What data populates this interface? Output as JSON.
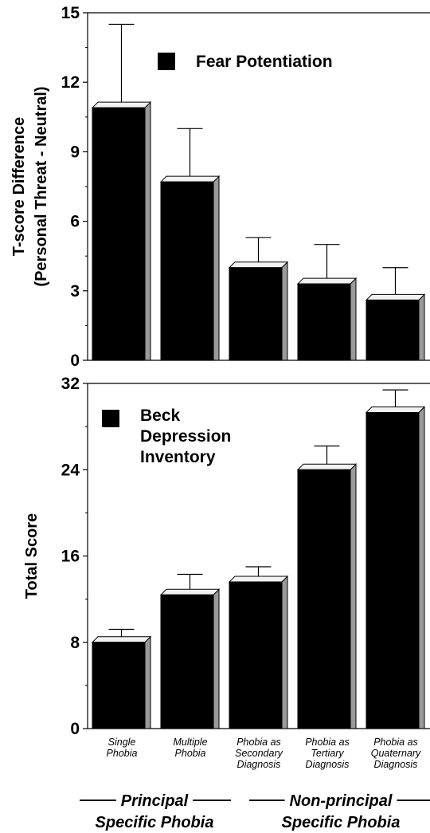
{
  "chart_data": [
    {
      "type": "bar",
      "title": "",
      "ylabel": [
        "T-score Difference",
        "(Personal Threat - Neutral)"
      ],
      "ylim": [
        0,
        15
      ],
      "yticks": [
        0,
        3,
        6,
        9,
        12,
        15
      ],
      "legend": "Fear Potentiation",
      "legend_position": "top",
      "categories": [
        "Single Phobia",
        "Multiple Phobia",
        "Phobia as Secondary Diagnosis",
        "Phobia as Tertiary Diagnosis",
        "Phobia as Quaternary Diagnosis"
      ],
      "values": [
        10.9,
        7.7,
        4.0,
        3.3,
        2.6
      ],
      "error_upper": [
        14.5,
        10.0,
        5.3,
        5.0,
        4.0
      ]
    },
    {
      "type": "bar",
      "title": "",
      "ylabel": [
        "Total Score"
      ],
      "ylim": [
        0,
        32
      ],
      "yticks": [
        0,
        8,
        16,
        24,
        32
      ],
      "legend": [
        "Beck",
        "Depression",
        "Inventory"
      ],
      "legend_position": "top-left",
      "categories": [
        "Single Phobia",
        "Multiple Phobia",
        "Phobia as Secondary Diagnosis",
        "Phobia as Tertiary Diagnosis",
        "Phobia as Quaternary Diagnosis"
      ],
      "values": [
        8.0,
        12.4,
        13.6,
        24.0,
        29.3
      ],
      "error_upper": [
        9.2,
        14.3,
        15.0,
        26.2,
        31.4
      ]
    }
  ],
  "x_category_labels": [
    [
      "Single",
      "Phobia"
    ],
    [
      "Multiple",
      "Phobia"
    ],
    [
      "Phobia as",
      "Secondary",
      "Diagnosis"
    ],
    [
      "Phobia as",
      "Tertiary",
      "Diagnosis"
    ],
    [
      "Phobia as",
      "Quaternary",
      "Diagnosis"
    ]
  ],
  "groups": [
    {
      "line1": "Principal",
      "line2": "Specific Phobia"
    },
    {
      "line1": "Non-principal",
      "line2": "Specific Phobia"
    }
  ]
}
